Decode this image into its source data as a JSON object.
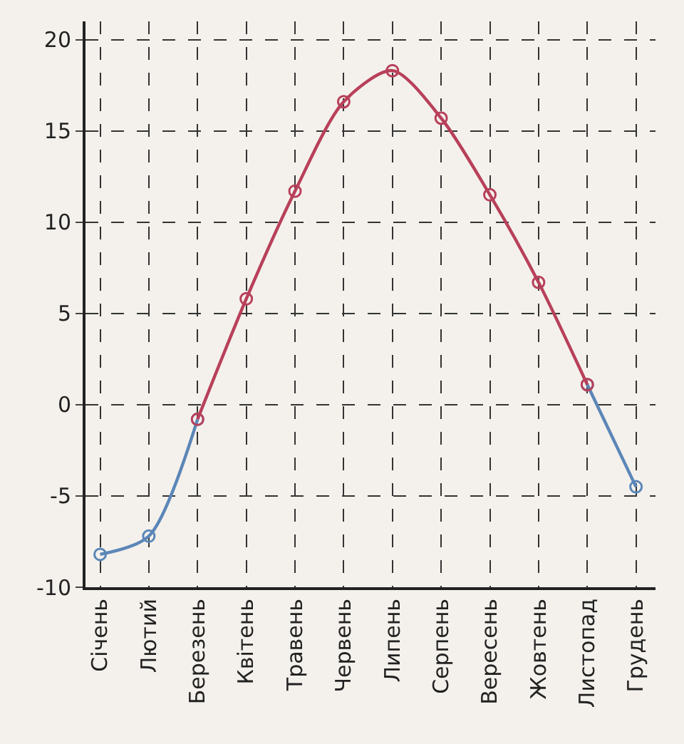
{
  "chart_data": {
    "type": "line",
    "categories": [
      "Січень",
      "Лютий",
      "Березень",
      "Квітень",
      "Травень",
      "Червень",
      "Липень",
      "Серпень",
      "Вересень",
      "Жовтень",
      "Листопад",
      "Грудень"
    ],
    "series": [
      {
        "color": "#5b86b8",
        "values": [
          -8.2,
          -7.2,
          -0.8,
          null,
          null,
          null,
          null,
          null,
          null,
          null,
          1.1,
          -4.5
        ]
      },
      {
        "color": "#b8405a",
        "values": [
          null,
          null,
          -0.8,
          5.8,
          11.7,
          16.6,
          18.3,
          15.7,
          11.5,
          6.7,
          1.1,
          null
        ]
      }
    ],
    "ylim": [
      -10,
      21
    ],
    "yticks": [
      -10,
      -5,
      0,
      5,
      10,
      15,
      20
    ],
    "grid": true,
    "marker": "circle",
    "line_style": "solid"
  }
}
